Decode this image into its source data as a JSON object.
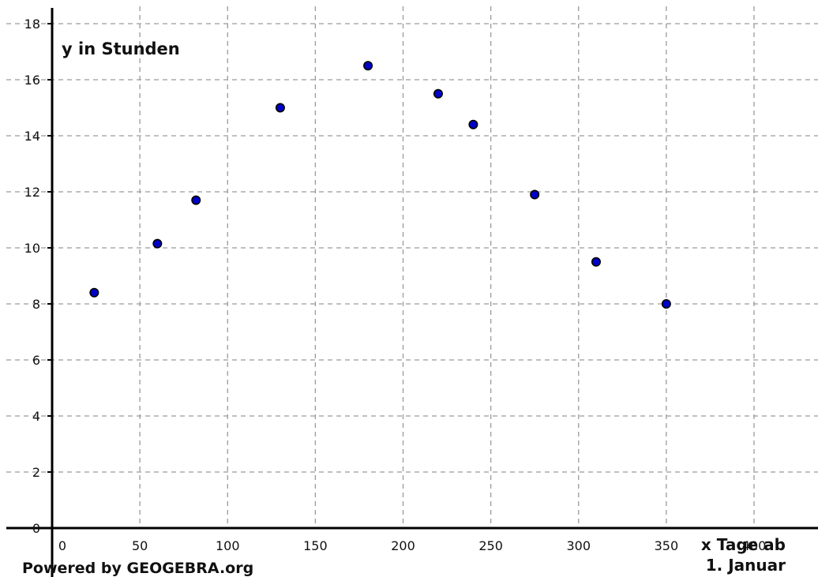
{
  "chart_data": {
    "type": "scatter",
    "ylabel": "y in Stunden",
    "xlabel_lines": [
      "x Tage ab",
      "1. Januar"
    ],
    "credit": "Powered by GEOGEBRA.org",
    "xlim": [
      0,
      400
    ],
    "ylim": [
      0,
      18
    ],
    "x_ticks": [
      0,
      50,
      100,
      150,
      200,
      250,
      300,
      350,
      400
    ],
    "y_ticks": [
      0,
      2,
      4,
      6,
      8,
      10,
      12,
      14,
      16,
      18
    ],
    "grid": true,
    "point_color": "#0000c8",
    "points": [
      {
        "x": 24,
        "y": 8.4
      },
      {
        "x": 60,
        "y": 10.15
      },
      {
        "x": 82,
        "y": 11.7
      },
      {
        "x": 130,
        "y": 15.0
      },
      {
        "x": 180,
        "y": 16.5
      },
      {
        "x": 220,
        "y": 15.5
      },
      {
        "x": 240,
        "y": 14.4
      },
      {
        "x": 275,
        "y": 11.9
      },
      {
        "x": 310,
        "y": 9.5
      },
      {
        "x": 350,
        "y": 8.0
      }
    ]
  }
}
